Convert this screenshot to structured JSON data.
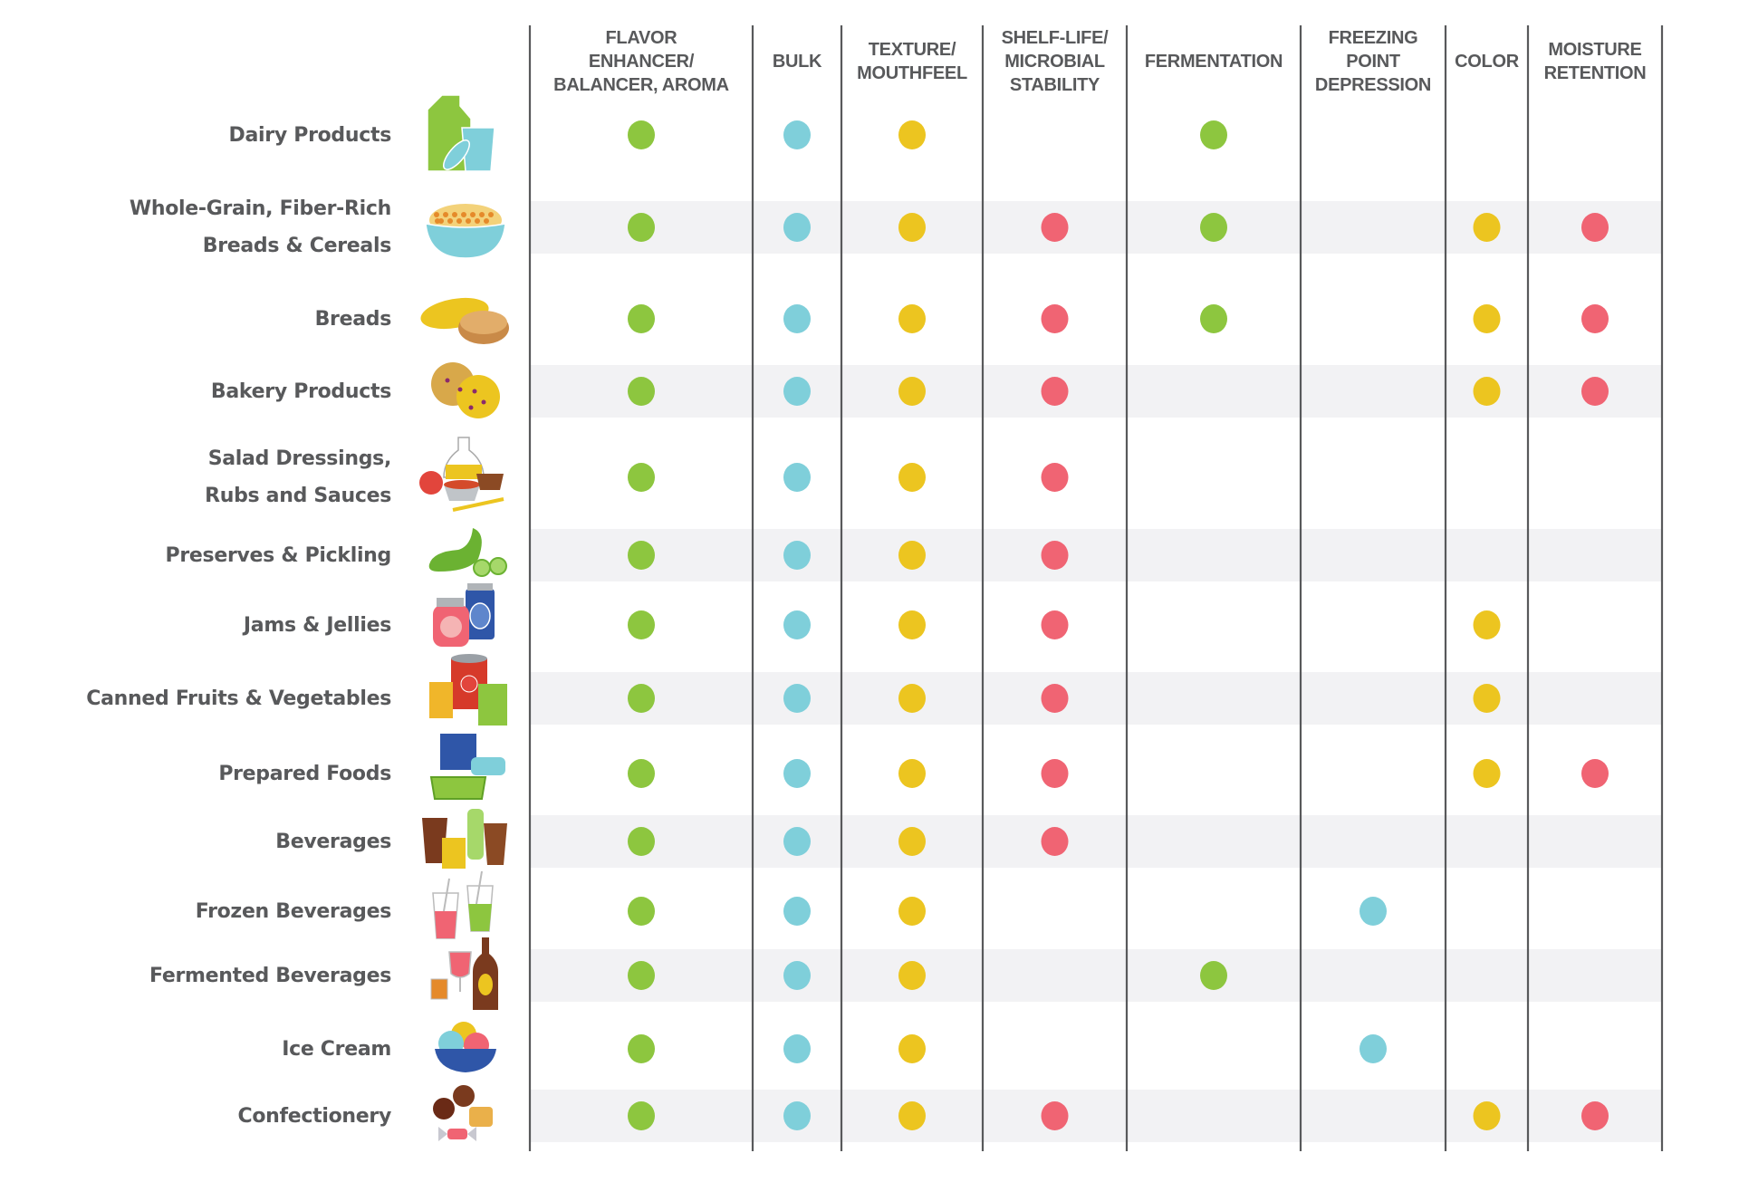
{
  "chart_data": {
    "type": "table",
    "title": "",
    "columns": [
      "FLAVOR\nENHANCER/\nBALANCER, AROMA",
      "BULK",
      "TEXTURE/\nMOUTHFEEL",
      "SHELF-LIFE/\nMICROBIAL\nSTABILITY",
      "FERMENTATION",
      "FREEZING\nPOINT\nDEPRESSION",
      "COLOR",
      "MOISTURE\nRETENTION"
    ],
    "column_colors": [
      "#8dc63f",
      "#7fcfda",
      "#ecc520",
      "#f06473",
      "#8dc63f",
      "#7fcfda",
      "#ecc520",
      "#f06473"
    ],
    "rows": [
      {
        "label": "Dairy Products",
        "icon": "dairy-icon",
        "marks": [
          1,
          1,
          1,
          0,
          1,
          0,
          0,
          0
        ]
      },
      {
        "label": "Whole-Grain, Fiber-Rich\nBreads & Cereals",
        "icon": "cereal-bowl-icon",
        "marks": [
          1,
          1,
          1,
          1,
          1,
          0,
          1,
          1
        ]
      },
      {
        "label": "Breads",
        "icon": "bread-icon",
        "marks": [
          1,
          1,
          1,
          1,
          1,
          0,
          1,
          1
        ]
      },
      {
        "label": "Bakery Products",
        "icon": "muffin-icon",
        "marks": [
          1,
          1,
          1,
          1,
          0,
          0,
          1,
          1
        ]
      },
      {
        "label": "Salad Dressings,\nRubs and Sauces",
        "icon": "sauces-icon",
        "marks": [
          1,
          1,
          1,
          1,
          0,
          0,
          0,
          0
        ]
      },
      {
        "label": "Preserves & Pickling",
        "icon": "pickle-icon",
        "marks": [
          1,
          1,
          1,
          1,
          0,
          0,
          0,
          0
        ]
      },
      {
        "label": "Jams & Jellies",
        "icon": "jam-jars-icon",
        "marks": [
          1,
          1,
          1,
          1,
          0,
          0,
          1,
          0
        ]
      },
      {
        "label": "Canned Fruits & Vegetables",
        "icon": "cans-icon",
        "marks": [
          1,
          1,
          1,
          1,
          0,
          0,
          1,
          0
        ]
      },
      {
        "label": "Prepared Foods",
        "icon": "containers-icon",
        "marks": [
          1,
          1,
          1,
          1,
          0,
          0,
          1,
          1
        ]
      },
      {
        "label": "Beverages",
        "icon": "drinks-icon",
        "marks": [
          1,
          1,
          1,
          1,
          0,
          0,
          0,
          0
        ]
      },
      {
        "label": "Frozen Beverages",
        "icon": "frozen-drinks-icon",
        "marks": [
          1,
          1,
          1,
          0,
          0,
          1,
          0,
          0
        ]
      },
      {
        "label": "Fermented Beverages",
        "icon": "wine-beer-icon",
        "marks": [
          1,
          1,
          1,
          0,
          1,
          0,
          0,
          0
        ]
      },
      {
        "label": "Ice Cream",
        "icon": "ice-cream-bowl-icon",
        "marks": [
          1,
          1,
          1,
          0,
          0,
          1,
          0,
          0
        ]
      },
      {
        "label": "Confectionery",
        "icon": "candy-icon",
        "marks": [
          1,
          1,
          1,
          1,
          0,
          0,
          1,
          1
        ]
      }
    ]
  },
  "colors": {
    "text": "#58595b",
    "grid_line": "#58595b",
    "stripe": "#f2f2f4"
  }
}
